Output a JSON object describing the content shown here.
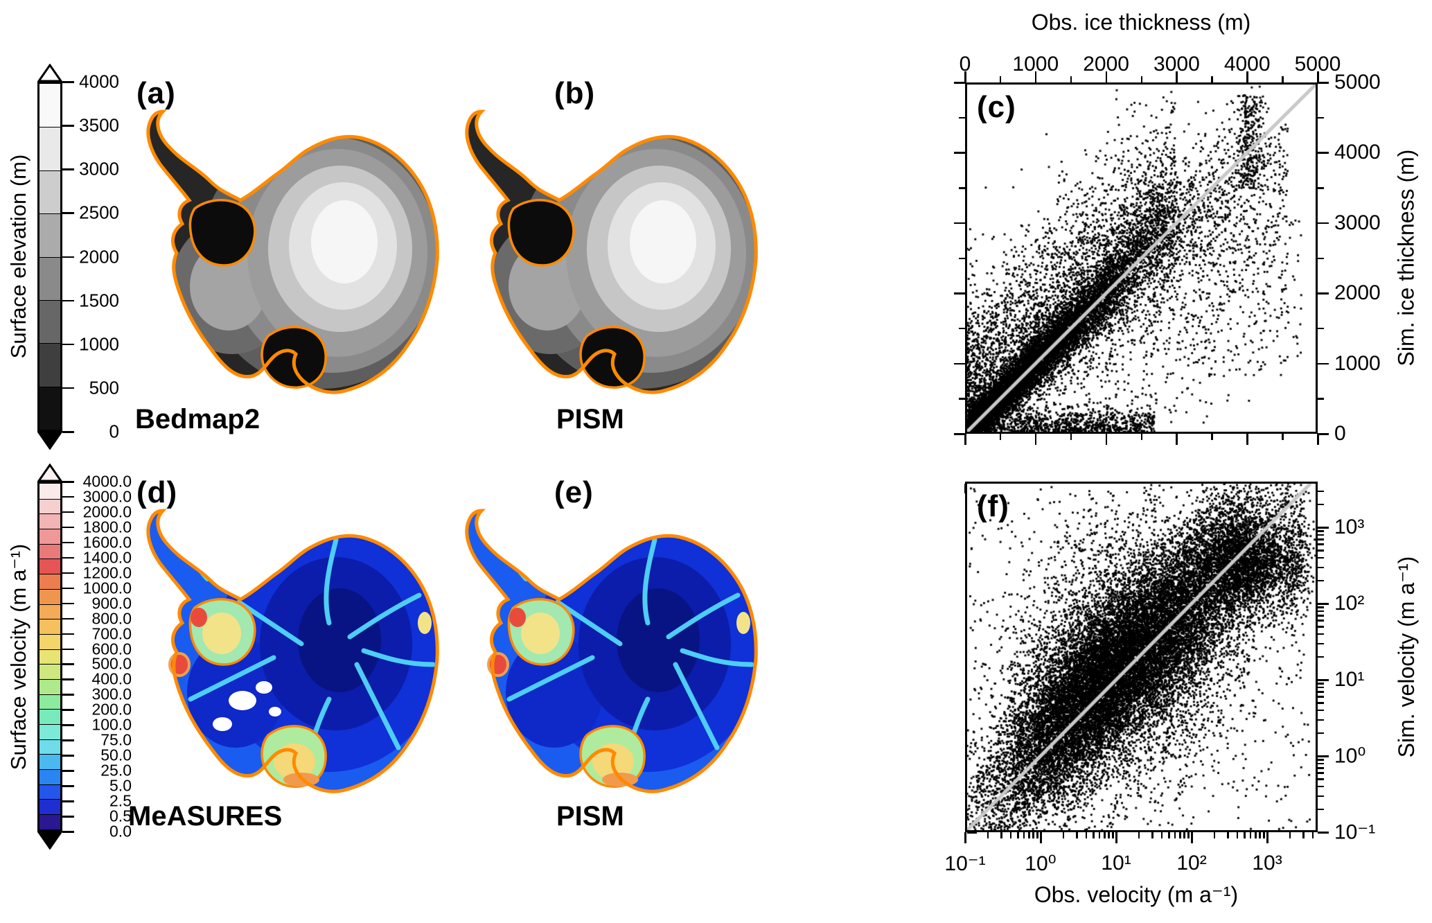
{
  "figure": {
    "background": "#ffffff",
    "accent_orange": "#ff8a00",
    "reference_line_color": "#c8c8c8",
    "point_color": "#000000"
  },
  "colorbars": {
    "elevation": {
      "label": "Surface elevation (m)",
      "tick_labels": [
        "4000",
        "3500",
        "3000",
        "2500",
        "2000",
        "1500",
        "1000",
        "500",
        "0"
      ],
      "segment_colors_top_to_bottom": [
        "#f9f9f9",
        "#e9e9e9",
        "#cdcdcd",
        "#ababab",
        "#8a8a8a",
        "#676767",
        "#3f3f3f",
        "#111111"
      ],
      "arrow_top_color": "#ffffff",
      "arrow_bottom_color": "#000000"
    },
    "velocity": {
      "label": "Surface velocity (m a⁻¹)",
      "tick_labels": [
        "4000.0",
        "3000.0",
        "2000.0",
        "1800.0",
        "1600.0",
        "1400.0",
        "1200.0",
        "1000.0",
        "900.0",
        "800.0",
        "700.0",
        "600.0",
        "500.0",
        "400.0",
        "300.0",
        "200.0",
        "100.0",
        "75.0",
        "50.0",
        "25.0",
        "5.0",
        "2.5",
        "0.5",
        "0.0"
      ],
      "segment_colors_top_to_bottom": [
        "#fbeaea",
        "#f6cfcf",
        "#f2b4b4",
        "#ee9898",
        "#ea7a7a",
        "#e65555",
        "#ec7e4e",
        "#f0954e",
        "#f3ab57",
        "#f6c05f",
        "#f4d569",
        "#e8e372",
        "#cfe87e",
        "#aeea89",
        "#8deb9e",
        "#79eabc",
        "#7dead8",
        "#6fdcea",
        "#49b9ef",
        "#2a84f2",
        "#2356ea",
        "#1f2ed0",
        "#2c1793"
      ],
      "arrow_top_color": "#fdf2f2",
      "arrow_bottom_color": "#000000"
    }
  },
  "maps": {
    "a": {
      "letter": "(a)",
      "name": "Bedmap2",
      "kind": "surface elevation, observed"
    },
    "b": {
      "letter": "(b)",
      "name": "PISM",
      "kind": "surface elevation, simulated"
    },
    "d": {
      "letter": "(d)",
      "name": "MeASURES",
      "kind": "surface velocity, observed"
    },
    "e": {
      "letter": "(e)",
      "name": "PISM",
      "kind": "surface velocity, simulated"
    }
  },
  "chart_data": [
    {
      "id": "c",
      "letter": "(c)",
      "type": "scatter",
      "x_scale": "linear",
      "y_scale": "linear",
      "xlabel": "Obs. ice thickness (m)",
      "ylabel": "Sim. ice thickness (m)",
      "xlabel_position": "top",
      "ylabel_position": "right",
      "xlim": [
        0,
        5000
      ],
      "ylim": [
        0,
        5000
      ],
      "x_ticks": [
        0,
        1000,
        2000,
        3000,
        4000,
        5000
      ],
      "y_ticks": [
        0,
        1000,
        2000,
        3000,
        4000,
        5000
      ],
      "x_tick_labels": [
        "0",
        "1000",
        "2000",
        "3000",
        "4000",
        "5000"
      ],
      "y_tick_labels": [
        "0",
        "1000",
        "2000",
        "3000",
        "4000",
        "5000"
      ],
      "minor_step": 500,
      "grid": false,
      "reference_line": {
        "type": "1:1",
        "from": [
          0,
          0
        ],
        "to": [
          5000,
          5000
        ],
        "color": "#c8c8c8",
        "width": 5
      },
      "point_color": "#000000",
      "description": "Dense black point cloud of observed (Bedmap2) vs simulated (PISM) ice thickness per grid cell; solid mass along the 1:1 line up to ~4300 m, broad plume above the line for thin ice, sparse cloud below the line, near-vertical arm at obs ≈ 4000 m reaching sim ≈ 4850 m, dense strip along sim ≈ 0.",
      "seed": 1337,
      "point_clusters": [
        {
          "kind": "diag_band",
          "n": 9000,
          "x_scale": 1500,
          "x_max": 4350,
          "slope_sd": 0.12,
          "noise": 140
        },
        {
          "kind": "upper_plume",
          "n": 3200,
          "x_max": 3000,
          "lift_scale": 900
        },
        {
          "kind": "lower_scatter",
          "n": 1300,
          "x_min": 400,
          "x_max": 4600,
          "drop_scale": 1300
        },
        {
          "kind": "bottom_strip",
          "n": 900,
          "x_max": 2700,
          "y_scale": 150
        },
        {
          "kind": "vertical_arm",
          "n": 300,
          "x_mean": 4050,
          "x_sd": 110,
          "y_min": 3500,
          "y_max": 4850
        },
        {
          "kind": "sparse_box",
          "n": 300,
          "x_min": 2500,
          "x_max": 4800,
          "y_min": 800,
          "y_max": 3200
        }
      ]
    },
    {
      "id": "f",
      "letter": "(f)",
      "type": "scatter",
      "x_scale": "log",
      "y_scale": "log",
      "xlabel": "Obs. velocity (m a⁻¹)",
      "ylabel": "Sim. velocity (m a⁻¹)",
      "xlabel_position": "bottom",
      "ylabel_position": "right",
      "xlim": [
        0.1,
        4700
      ],
      "ylim": [
        0.1,
        4000
      ],
      "x_ticks_exponents": [
        -1,
        0,
        1,
        2,
        3
      ],
      "y_ticks_exponents": [
        -1,
        0,
        1,
        2,
        3
      ],
      "x_tick_labels": [
        "10⁻¹",
        "10⁰",
        "10¹",
        "10²",
        "10³"
      ],
      "y_tick_labels": [
        "10⁻¹",
        "10⁰",
        "10¹",
        "10²",
        "10³"
      ],
      "grid": false,
      "reference_line": {
        "type": "1:1",
        "from": [
          0.1,
          0.1
        ],
        "to": [
          4000,
          4000
        ],
        "color": "#c8c8c8",
        "width": 5
      },
      "point_color": "#000000",
      "description": "Log-log scatter of observed (MeASURES) vs simulated (PISM) surface speed; extremely dense black cloud roughly centered on the 1:1 line with ~±1 decade spread, dense blob near 10²·⁵–10³ m a⁻¹, scattered outliers toward upper-left and lower-right.",
      "seed": 4242,
      "point_clusters": [
        {
          "kind": "log_diag",
          "n": 15000,
          "u_mean": 1.0,
          "u_sd": 0.85,
          "off": 0.1,
          "v_sd": 0.5
        },
        {
          "kind": "log_upper",
          "n": 2200,
          "u_mean": 0.5,
          "u_sd": 0.6,
          "off": 0.3,
          "spread": 1.0
        },
        {
          "kind": "log_lower",
          "n": 2000,
          "u_mean": 1.9,
          "u_sd": 0.7,
          "off": 0.2,
          "spread": 0.9
        },
        {
          "kind": "log_blob",
          "n": 2600,
          "u_mean": 2.7,
          "u_sd": 0.35,
          "v_mean": 2.6,
          "v_sd": 0.35
        },
        {
          "kind": "log_blob",
          "n": 250,
          "u_mean": 3.4,
          "u_sd": 0.1,
          "v_mean": 2.6,
          "v_sd": 0.45
        },
        {
          "kind": "log_uniform",
          "n": 600,
          "u_min": -1.0,
          "u_max": 3.6,
          "v_min": -1.0,
          "v_max": 3.55
        }
      ]
    }
  ]
}
